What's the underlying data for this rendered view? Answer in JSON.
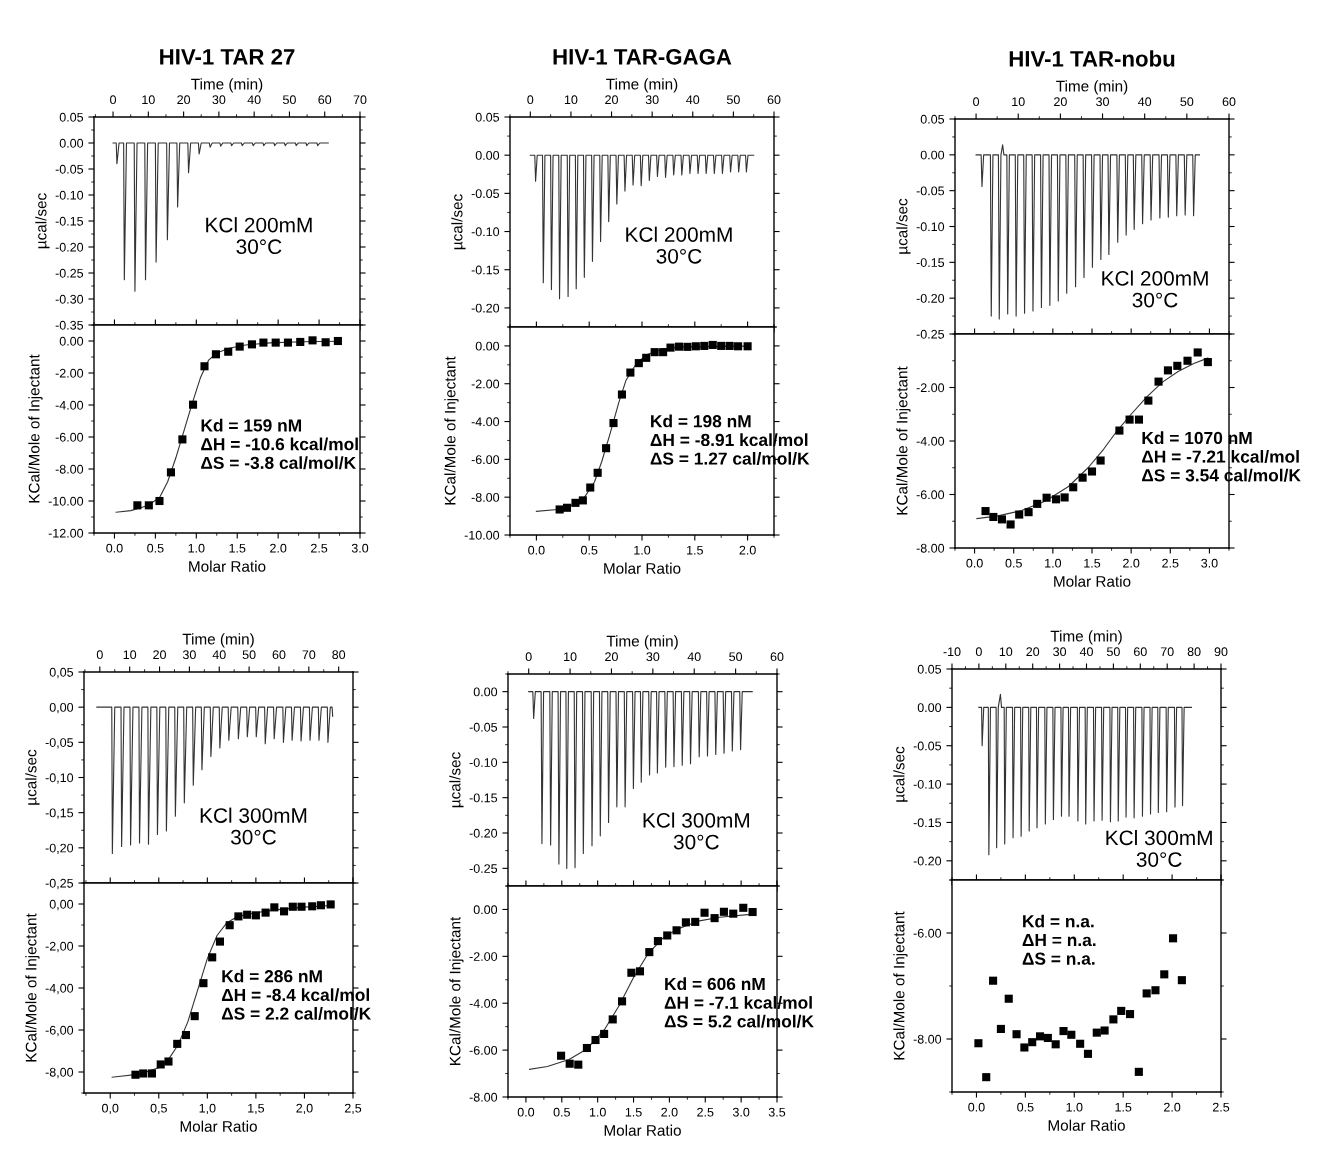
{
  "chart_data": [
    {
      "type": "line",
      "title": "HIV-1 TAR 27",
      "xlabel": "Time (min)",
      "ylabel": "µcal/sec",
      "xlim": [
        -5.4,
        70
      ],
      "xticks": [
        0,
        10,
        20,
        30,
        40,
        50,
        60,
        70
      ],
      "ylim": [
        -0.35,
        0.05
      ],
      "yticks": [
        {
          "value": 0.05,
          "label": "0.05"
        },
        {
          "value": 0,
          "label": "0.00"
        },
        {
          "value": -0.05,
          "label": "-0.05"
        },
        {
          "value": -0.1,
          "label": "-0.10"
        },
        {
          "value": -0.15,
          "label": "-0.15"
        },
        {
          "value": -0.2,
          "label": "-0.20"
        },
        {
          "value": -0.25,
          "label": "-0.25"
        },
        {
          "value": -0.3,
          "label": "-0.30"
        },
        {
          "value": -0.35,
          "label": "-0.35"
        }
      ],
      "annotations": [
        "KCl 200mM",
        "30°C"
      ],
      "series": [
        {
          "color": "#333333",
          "x": [
            0,
            0.9,
            1.1,
            1.7,
            3.0,
            3.2,
            3.8,
            6.0,
            6.2,
            6.8,
            9.0,
            9.2,
            9.8,
            12.0,
            12.2,
            12.8,
            15.2,
            15.4,
            16.0,
            18.1,
            18.3,
            18.9,
            21.2,
            21.4,
            22.0,
            24.2,
            24.4,
            25.0,
            27.3,
            27.5,
            28.1,
            30.3,
            30.5,
            31.1,
            33.4,
            33.6,
            34.2,
            36.4,
            36.6,
            37.2,
            39.5,
            39.7,
            40.3,
            42.5,
            42.7,
            43.3,
            45.6,
            45.8,
            46.4,
            48.6,
            48.8,
            49.4,
            51.7,
            51.9,
            52.5,
            54.7,
            54.9,
            55.5,
            57.8,
            58.0,
            58.6,
            61
          ],
          "values": [
            0,
            0,
            -0.04,
            0,
            0,
            -0.263,
            0,
            0,
            -0.285,
            0,
            0,
            -0.263,
            0,
            0,
            -0.229,
            0,
            0,
            -0.186,
            0,
            0,
            -0.123,
            0,
            0,
            -0.057,
            0,
            0,
            -0.021,
            0,
            0,
            -0.008,
            0,
            0,
            -0.006,
            0,
            0,
            -0.005,
            0,
            0,
            -0.005,
            0,
            0,
            -0.005,
            0,
            0,
            -0.005,
            0,
            0,
            -0.005,
            0,
            0,
            -0.005,
            0,
            0,
            -0.005,
            0,
            0,
            -0.005,
            0,
            0,
            -0.005,
            0,
            0
          ]
        }
      ]
    },
    {
      "type": "scatter",
      "xlabel": "Molar Ratio",
      "ylabel": "KCal/Mole of Injectant",
      "xlim": [
        -0.25,
        3.0
      ],
      "xticks": [
        {
          "value": 0,
          "label": "0.0"
        },
        0.5,
        {
          "value": 1,
          "label": "1.0"
        },
        1.5,
        {
          "value": 2,
          "label": "2.0"
        },
        2.5,
        {
          "value": 3,
          "label": "3.0"
        }
      ],
      "ylim": [
        -12,
        1.0
      ],
      "yticks": [
        {
          "value": 0,
          "label": "0.00"
        },
        {
          "value": -2,
          "label": "-2.00"
        },
        {
          "value": -4,
          "label": "-4.00"
        },
        {
          "value": -6,
          "label": "-6.00"
        },
        {
          "value": -8,
          "label": "-8.00"
        },
        {
          "value": -10,
          "label": "-10.00"
        },
        {
          "value": -12,
          "label": "-12.00"
        }
      ],
      "annotations": [
        "Kd = 159 nM",
        "ΔH = -10.6 kcal/mol",
        "ΔS = -3.8 cal/mol/K"
      ],
      "series": [
        {
          "color": "#000000",
          "marker": "square",
          "x": [
            0.28,
            0.42,
            0.55,
            0.69,
            0.83,
            0.96,
            1.1,
            1.24,
            1.39,
            1.53,
            1.68,
            1.82,
            1.97,
            2.12,
            2.27,
            2.42,
            2.58,
            2.73
          ],
          "values": [
            -10.27,
            -10.27,
            -10.0,
            -8.21,
            -6.15,
            -3.98,
            -1.58,
            -0.83,
            -0.67,
            -0.35,
            -0.21,
            -0.1,
            -0.1,
            -0.1,
            -0.06,
            0.04,
            -0.08,
            0.0
          ]
        },
        {
          "type": "line",
          "color": "#333333",
          "x": [
            0.02,
            0.2,
            0.4,
            0.55,
            0.65,
            0.75,
            0.85,
            0.95,
            1.05,
            1.15,
            1.25,
            1.4,
            1.6,
            1.9,
            2.3,
            2.73
          ],
          "values": [
            -10.7,
            -10.6,
            -10.3,
            -9.8,
            -8.8,
            -7.3,
            -5.6,
            -3.9,
            -2.3,
            -1.2,
            -0.75,
            -0.45,
            -0.25,
            -0.12,
            -0.05,
            -0.02
          ]
        }
      ]
    },
    {
      "type": "line",
      "title": "HIV-1 TAR-GAGA",
      "xlabel": "Time (min)",
      "ylabel": "µcal/sec",
      "xlim": [
        -5,
        60
      ],
      "xticks": [
        0,
        10,
        20,
        30,
        40,
        50,
        60
      ],
      "ylim": [
        -0.225,
        0.05
      ],
      "yticks": [
        {
          "value": 0.05,
          "label": "0.05"
        },
        {
          "value": 0,
          "label": "0.00"
        },
        {
          "value": -0.05,
          "label": "-0.05"
        },
        {
          "value": -0.1,
          "label": "-0.10"
        },
        {
          "value": -0.15,
          "label": "-0.15"
        },
        {
          "value": -0.2,
          "label": "-0.20"
        }
      ],
      "annotations": [
        "KCl 200mM",
        "30°C"
      ],
      "series": [
        {
          "color": "#333333",
          "x": [
            0,
            1.1,
            1.3,
            1.7,
            3.0,
            3.2,
            3.6,
            5.0,
            5.2,
            5.6,
            7.0,
            7.2,
            7.6,
            9.1,
            9.3,
            9.7,
            11.1,
            11.3,
            11.7,
            13.1,
            13.3,
            13.7,
            15.1,
            15.3,
            15.7,
            17.1,
            17.3,
            17.7,
            19.1,
            19.3,
            19.7,
            21.1,
            21.3,
            21.7,
            23.1,
            23.3,
            23.7,
            25.1,
            25.3,
            25.7,
            27.1,
            27.3,
            27.7,
            29.1,
            29.3,
            29.7,
            31.1,
            31.3,
            31.7,
            33.1,
            33.3,
            33.7,
            35.1,
            35.3,
            35.7,
            37.1,
            37.3,
            37.7,
            39.1,
            39.3,
            39.7,
            41.1,
            41.3,
            41.7,
            43.1,
            43.3,
            43.7,
            45.1,
            45.3,
            45.7,
            47.1,
            47.3,
            47.7,
            49.1,
            49.3,
            49.7,
            51.1,
            51.3,
            51.7,
            53.0,
            53.2,
            53.6,
            55
          ],
          "values": [
            0,
            0,
            -0.034,
            0,
            0,
            -0.167,
            0,
            0,
            -0.176,
            0,
            0,
            -0.188,
            0,
            0,
            -0.185,
            0,
            0,
            -0.175,
            0,
            0,
            -0.16,
            0,
            0,
            -0.139,
            0,
            0,
            -0.113,
            0,
            0,
            -0.087,
            0,
            0,
            -0.064,
            0,
            0,
            -0.047,
            0,
            0,
            -0.039,
            0,
            0,
            -0.04,
            0,
            0,
            -0.033,
            0,
            0,
            -0.028,
            0,
            0,
            -0.029,
            0,
            0,
            -0.026,
            0,
            0,
            -0.026,
            0,
            0,
            -0.024,
            0,
            0,
            -0.024,
            0,
            0,
            -0.024,
            0,
            0,
            -0.024,
            0,
            0,
            -0.024,
            0,
            0,
            -0.022,
            0,
            0,
            -0.022,
            0,
            0,
            -0.022,
            0,
            0
          ]
        }
      ]
    },
    {
      "type": "scatter",
      "xlabel": "Molar Ratio",
      "ylabel": "KCal/Mole of Injectant",
      "xlim": [
        -0.25,
        2.25
      ],
      "xticks": [
        {
          "value": 0,
          "label": "0.0"
        },
        0.5,
        {
          "value": 1,
          "label": "1.0"
        },
        1.5,
        {
          "value": 2,
          "label": "2.0"
        }
      ],
      "ylim": [
        -10,
        1.0
      ],
      "yticks": [
        {
          "value": 0,
          "label": "0.00"
        },
        {
          "value": -2,
          "label": "-2.00"
        },
        {
          "value": -4,
          "label": "-4.00"
        },
        {
          "value": -6,
          "label": "-6.00"
        },
        {
          "value": -8,
          "label": "-8.00"
        },
        {
          "value": -10,
          "label": "-10.00"
        }
      ],
      "annotations": [
        "Kd = 198 nM",
        "ΔH = -8.91 kcal/mol",
        "ΔS = 1.27 cal/mol/K"
      ],
      "series": [
        {
          "color": "#000000",
          "marker": "square",
          "x": [
            0.22,
            0.29,
            0.37,
            0.44,
            0.51,
            0.58,
            0.66,
            0.73,
            0.81,
            0.89,
            0.97,
            1.04,
            1.12,
            1.2,
            1.27,
            1.35,
            1.43,
            1.51,
            1.59,
            1.67,
            1.75,
            1.83,
            1.91,
            2.0
          ],
          "values": [
            -8.65,
            -8.56,
            -8.3,
            -8.17,
            -7.49,
            -6.71,
            -5.41,
            -4.08,
            -2.57,
            -1.41,
            -0.91,
            -0.63,
            -0.33,
            -0.33,
            -0.09,
            -0.04,
            -0.05,
            -0.02,
            0.0,
            0.05,
            0.0,
            0.0,
            -0.02,
            -0.02
          ]
        },
        {
          "type": "line",
          "color": "#333333",
          "x": [
            0.0,
            0.2,
            0.35,
            0.45,
            0.55,
            0.62,
            0.7,
            0.78,
            0.85,
            0.95,
            1.05,
            1.2,
            1.4,
            2.0
          ],
          "values": [
            -8.75,
            -8.65,
            -8.4,
            -8.05,
            -7.2,
            -6.1,
            -4.6,
            -3.0,
            -1.8,
            -0.9,
            -0.45,
            -0.15,
            -0.05,
            -0.01
          ]
        }
      ]
    },
    {
      "type": "line",
      "title": "HIV-1 TAR-nobu",
      "xlabel": "Time (min)",
      "ylabel": "µcal/sec",
      "xlim": [
        -5,
        60
      ],
      "xticks": [
        0,
        10,
        20,
        30,
        40,
        50,
        60
      ],
      "ylim": [
        -0.25,
        0.05
      ],
      "yticks": [
        {
          "value": 0.05,
          "label": "0.05"
        },
        {
          "value": 0,
          "label": "0.00"
        },
        {
          "value": -0.05,
          "label": "-0.05"
        },
        {
          "value": -0.1,
          "label": "-0.10"
        },
        {
          "value": -0.15,
          "label": "-0.15"
        },
        {
          "value": -0.2,
          "label": "-0.20"
        },
        {
          "value": -0.25,
          "label": "-0.25"
        }
      ],
      "annotations": [
        "KCl 200mM",
        "30°C"
      ],
      "series": [
        {
          "color": "#333333",
          "x": [
            0,
            1.2,
            1.4,
            1.8,
            3.4,
            3.6,
            4.0,
            5.3,
            5.5,
            5.9,
            6.3,
            6.6,
            7.3,
            7.5,
            7.9,
            9.3,
            9.5,
            9.9,
            11.3,
            11.5,
            11.9,
            13.3,
            13.5,
            13.9,
            15.3,
            15.5,
            15.9,
            17.3,
            17.5,
            17.9,
            19.3,
            19.5,
            19.9,
            21.3,
            21.5,
            21.9,
            23.4,
            23.6,
            24.0,
            25.4,
            25.6,
            26.0,
            27.4,
            27.6,
            28.0,
            29.4,
            29.6,
            30.0,
            31.3,
            31.5,
            31.9,
            33.4,
            33.6,
            34.0,
            35.4,
            35.6,
            36.0,
            37.3,
            37.5,
            37.9,
            39.3,
            39.5,
            39.9,
            41.3,
            41.5,
            41.9,
            43.4,
            43.6,
            44.0,
            45.4,
            45.6,
            46.0,
            47.4,
            47.6,
            48.0,
            49.4,
            49.6,
            50.0,
            51.4,
            51.6,
            52.0,
            53
          ],
          "values": [
            0,
            0,
            -0.044,
            0,
            0,
            -0.225,
            0,
            0,
            -0.229,
            0,
            0.014,
            0,
            0,
            -0.222,
            0,
            0,
            -0.225,
            0,
            0,
            -0.221,
            0,
            0,
            -0.218,
            0,
            0,
            -0.213,
            0,
            0,
            -0.21,
            0,
            0,
            -0.204,
            0,
            0,
            -0.193,
            0,
            0,
            -0.184,
            0,
            0,
            -0.171,
            0,
            0,
            -0.157,
            0,
            0,
            -0.146,
            0,
            0,
            -0.139,
            0,
            0,
            -0.122,
            0,
            0,
            -0.112,
            0,
            0,
            -0.104,
            0,
            0,
            -0.096,
            0,
            0,
            -0.091,
            0,
            0,
            -0.088,
            0,
            0,
            -0.087,
            0,
            0,
            -0.085,
            0,
            0,
            -0.084,
            0,
            0,
            -0.085,
            0,
            0
          ]
        }
      ]
    },
    {
      "type": "scatter",
      "xlabel": "Molar Ratio",
      "ylabel": "KCal/Mole of Injectant",
      "xlim": [
        -0.25,
        3.25
      ],
      "xticks": [
        {
          "value": 0,
          "label": "0.0"
        },
        0.5,
        {
          "value": 1,
          "label": "1.0"
        },
        1.5,
        {
          "value": 2,
          "label": "2.0"
        },
        2.5,
        {
          "value": 3,
          "label": "3.0"
        }
      ],
      "ylim": [
        -8,
        0
      ],
      "yticks": [
        {
          "value": -2,
          "label": "-2.00"
        },
        {
          "value": -4,
          "label": "-4.00"
        },
        {
          "value": -6,
          "label": "-6.00"
        },
        {
          "value": -8,
          "label": "-8.00"
        }
      ],
      "annotations": [
        "Kd = 1070 nM",
        "ΔH = -7.21 kcal/mol",
        "ΔS = 3.54 cal/mol/K"
      ],
      "series": [
        {
          "color": "#000000",
          "marker": "square",
          "x": [
            0.14,
            0.24,
            0.35,
            0.46,
            0.57,
            0.69,
            0.8,
            0.92,
            1.04,
            1.15,
            1.26,
            1.38,
            1.5,
            1.61,
            1.85,
            1.98,
            2.1,
            2.22,
            2.35,
            2.47,
            2.59,
            2.72,
            2.85,
            2.98
          ],
          "values": [
            -6.62,
            -6.84,
            -6.93,
            -7.12,
            -6.75,
            -6.66,
            -6.35,
            -6.12,
            -6.18,
            -6.11,
            -5.73,
            -5.37,
            -5.14,
            -4.73,
            -3.61,
            -3.2,
            -3.2,
            -2.49,
            -1.78,
            -1.36,
            -1.19,
            -1.0,
            -0.69,
            -1.05
          ]
        },
        {
          "type": "line",
          "color": "#333333",
          "x": [
            0.03,
            0.3,
            0.6,
            0.9,
            1.2,
            1.45,
            1.65,
            1.8,
            2.0,
            2.2,
            2.4,
            2.6,
            2.8,
            2.98
          ],
          "values": [
            -6.9,
            -6.8,
            -6.6,
            -6.25,
            -5.7,
            -5.0,
            -4.3,
            -3.7,
            -3.0,
            -2.35,
            -1.8,
            -1.4,
            -1.1,
            -0.9
          ]
        }
      ]
    },
    {
      "type": "line",
      "xlabel": "Time (min)",
      "ylabel": "µcal/sec",
      "xlim": [
        -5.3,
        84.8
      ],
      "xticks": [
        0,
        10,
        20,
        30,
        40,
        50,
        60,
        70,
        80
      ],
      "ylim": [
        -0.25,
        0.05
      ],
      "yticks": [
        {
          "value": 0.05,
          "label": "0,05"
        },
        {
          "value": 0,
          "label": "0,00"
        },
        {
          "value": -0.05,
          "label": "-0,05"
        },
        {
          "value": -0.1,
          "label": "-0,10"
        },
        {
          "value": -0.15,
          "label": "-0,15"
        },
        {
          "value": -0.2,
          "label": "-0,20"
        },
        {
          "value": -0.25,
          "label": "-0,25"
        }
      ],
      "annotations": [
        "KCl 300mM",
        "30°C"
      ],
      "series": [
        {
          "color": "#333333",
          "x": [
            -1,
            4.0,
            4.2,
            5.0,
            7.1,
            7.3,
            8.1,
            10.1,
            10.3,
            11.1,
            13.1,
            13.3,
            14.1,
            16.1,
            16.3,
            17.1,
            19.1,
            19.3,
            20.1,
            22.1,
            22.3,
            23.1,
            25.1,
            25.3,
            26.1,
            28.1,
            28.3,
            29.1,
            31.1,
            31.3,
            32.1,
            34.0,
            34.2,
            35.0,
            37.0,
            37.2,
            38.0,
            40.0,
            40.2,
            41.0,
            43.0,
            43.2,
            44.0,
            46.2,
            46.4,
            47.2,
            49.2,
            49.4,
            50.2,
            52.2,
            52.4,
            53.2,
            55.2,
            55.4,
            56.2,
            58.2,
            58.4,
            59.2,
            61.3,
            61.5,
            62.3,
            64.2,
            64.4,
            65.2,
            67.2,
            67.4,
            68.2,
            70.2,
            70.4,
            71.2,
            73.2,
            73.4,
            74.2,
            76.2,
            76.4,
            77.2,
            77.8,
            78
          ],
          "values": [
            0,
            0,
            -0.208,
            0,
            0,
            -0.198,
            0,
            0,
            -0.196,
            0,
            0,
            -0.193,
            0,
            0,
            -0.195,
            0,
            0,
            -0.181,
            0,
            0,
            -0.176,
            0,
            0,
            -0.155,
            0,
            0,
            -0.136,
            0,
            0,
            -0.111,
            0,
            0,
            -0.089,
            0,
            0,
            -0.07,
            0,
            0,
            -0.058,
            0,
            0,
            -0.047,
            0,
            0,
            -0.045,
            0,
            0,
            -0.042,
            0,
            0,
            -0.042,
            0,
            0,
            -0.052,
            0,
            0,
            -0.045,
            0,
            0,
            -0.05,
            0,
            0,
            -0.047,
            0,
            0,
            -0.048,
            0,
            0,
            -0.047,
            0,
            0,
            -0.047,
            0,
            0,
            -0.05,
            0,
            0,
            -0.013
          ]
        }
      ]
    },
    {
      "type": "scatter",
      "xlabel": "Molar Ratio",
      "ylabel": "KCal/Mole of Injectant",
      "xlim": [
        -0.27,
        2.5
      ],
      "xticks": [
        {
          "value": 0,
          "label": "0,0"
        },
        {
          "value": 0.5,
          "label": "0,5"
        },
        {
          "value": 1,
          "label": "1,0"
        },
        {
          "value": 1.5,
          "label": "1,5"
        },
        {
          "value": 2,
          "label": "2,0"
        },
        {
          "value": 2.5,
          "label": "2,5"
        }
      ],
      "ylim": [
        -9,
        1.0
      ],
      "yticks": [
        {
          "value": 0,
          "label": "0,00"
        },
        {
          "value": -2,
          "label": "-2,00"
        },
        {
          "value": -4,
          "label": "-4,00"
        },
        {
          "value": -6,
          "label": "-6,00"
        },
        {
          "value": -8,
          "label": "-8,00"
        }
      ],
      "annotations": [
        "Kd = 286 nM",
        "ΔH = -8.4 kcal/mol",
        "ΔS = 2.2 cal/mol/K"
      ],
      "series": [
        {
          "color": "#000000",
          "marker": "square",
          "x": [
            0.26,
            0.34,
            0.43,
            0.52,
            0.6,
            0.69,
            0.78,
            0.87,
            0.96,
            1.05,
            1.13,
            1.23,
            1.32,
            1.41,
            1.5,
            1.6,
            1.69,
            1.79,
            1.88,
            1.97,
            2.08,
            2.17,
            2.27
          ],
          "values": [
            -8.13,
            -8.07,
            -8.07,
            -7.64,
            -7.5,
            -6.66,
            -6.24,
            -5.34,
            -3.77,
            -2.54,
            -1.79,
            -1.01,
            -0.59,
            -0.51,
            -0.54,
            -0.41,
            -0.16,
            -0.35,
            -0.13,
            -0.13,
            -0.11,
            -0.06,
            -0.02
          ]
        },
        {
          "type": "line",
          "color": "#333333",
          "x": [
            0.02,
            0.3,
            0.5,
            0.6,
            0.7,
            0.8,
            0.9,
            1.0,
            1.1,
            1.2,
            1.3,
            1.45,
            1.7,
            2.0,
            2.27
          ],
          "values": [
            -8.25,
            -8.1,
            -7.8,
            -7.4,
            -6.7,
            -5.6,
            -4.1,
            -2.6,
            -1.5,
            -0.9,
            -0.62,
            -0.45,
            -0.28,
            -0.15,
            -0.07
          ]
        }
      ]
    },
    {
      "type": "line",
      "xlabel": "Time (min)",
      "ylabel": "µcal/sec",
      "xlim": [
        -5,
        60
      ],
      "xticks": [
        0,
        10,
        20,
        30,
        40,
        50,
        60
      ],
      "ylim": [
        -0.275,
        0.025
      ],
      "yticks": [
        {
          "value": 0,
          "label": "0.00"
        },
        {
          "value": -0.05,
          "label": "-0.05"
        },
        {
          "value": -0.1,
          "label": "-0.10"
        },
        {
          "value": -0.15,
          "label": "-0.15"
        },
        {
          "value": -0.2,
          "label": "-0.20"
        },
        {
          "value": -0.25,
          "label": "-0.25"
        }
      ],
      "annotations": [
        "KCl 300mM",
        "30°C"
      ],
      "series": [
        {
          "color": "#333333",
          "x": [
            0,
            1.0,
            1.2,
            1.6,
            3.0,
            3.2,
            3.6,
            5.1,
            5.3,
            5.7,
            7.1,
            7.3,
            7.7,
            9.0,
            9.2,
            9.6,
            11.0,
            11.2,
            11.6,
            13.0,
            13.2,
            13.6,
            15.1,
            15.3,
            15.7,
            17.1,
            17.3,
            17.7,
            19.1,
            19.3,
            19.7,
            21.1,
            21.3,
            21.7,
            23.1,
            23.3,
            23.7,
            25.1,
            25.3,
            25.7,
            27.0,
            27.2,
            27.6,
            29.0,
            29.2,
            29.6,
            30.9,
            31.1,
            31.5,
            32.9,
            33.1,
            33.5,
            34.9,
            35.1,
            35.5,
            36.9,
            37.1,
            37.5,
            38.9,
            39.1,
            39.5,
            41.0,
            41.2,
            41.6,
            43.0,
            43.2,
            43.6,
            45.0,
            45.2,
            45.6,
            47.0,
            47.2,
            47.6,
            49.0,
            49.2,
            49.6,
            51.0,
            51.2,
            51.6,
            54
          ],
          "values": [
            0,
            0,
            -0.038,
            0,
            0,
            -0.215,
            0,
            0,
            -0.217,
            0,
            0,
            -0.244,
            0,
            0,
            -0.25,
            0,
            0,
            -0.249,
            0,
            0,
            -0.229,
            0,
            0,
            -0.218,
            0,
            0,
            -0.204,
            0,
            0,
            -0.185,
            0,
            0,
            -0.163,
            0,
            0,
            -0.163,
            0,
            0,
            -0.137,
            0,
            0,
            -0.128,
            0,
            0,
            -0.118,
            0,
            0,
            -0.115,
            0,
            0,
            -0.107,
            0,
            0,
            -0.106,
            0,
            0,
            -0.104,
            0,
            0,
            -0.102,
            0,
            0,
            -0.092,
            0,
            0,
            -0.091,
            0,
            0,
            -0.089,
            0,
            0,
            -0.087,
            0,
            0,
            -0.084,
            0,
            0,
            -0.082,
            0,
            0
          ]
        }
      ]
    },
    {
      "type": "scatter",
      "xlabel": "Molar Ratio",
      "ylabel": "KCal/Mole of Injectant",
      "xlim": [
        -0.25,
        3.5
      ],
      "xticks": [
        {
          "value": 0,
          "label": "0.0"
        },
        0.5,
        {
          "value": 1,
          "label": "1.0"
        },
        1.5,
        {
          "value": 2,
          "label": "2.0"
        },
        2.5,
        {
          "value": 3,
          "label": "3.0"
        },
        3.5
      ],
      "ylim": [
        -8,
        1.0
      ],
      "yticks": [
        {
          "value": 0,
          "label": "0.00"
        },
        {
          "value": -2,
          "label": "-2.00"
        },
        {
          "value": -4,
          "label": "-4.00"
        },
        {
          "value": -6,
          "label": "-6.00"
        },
        {
          "value": -8,
          "label": "-8.00"
        }
      ],
      "annotations": [
        "Kd = 606 nM",
        "ΔH = -7.1 kcal/mol",
        "ΔS = 5.2 cal/mol/K"
      ],
      "series": [
        {
          "color": "#000000",
          "marker": "square",
          "x": [
            0.49,
            0.61,
            0.73,
            0.85,
            0.97,
            1.09,
            1.21,
            1.34,
            1.47,
            1.59,
            1.72,
            1.84,
            1.97,
            2.1,
            2.23,
            2.36,
            2.49,
            2.63,
            2.76,
            2.89,
            3.03,
            3.16
          ],
          "values": [
            -6.24,
            -6.58,
            -6.62,
            -5.91,
            -5.57,
            -5.31,
            -4.69,
            -3.92,
            -2.7,
            -2.64,
            -1.82,
            -1.35,
            -1.11,
            -0.89,
            -0.55,
            -0.53,
            -0.14,
            -0.37,
            -0.1,
            -0.18,
            0.07,
            -0.11
          ]
        },
        {
          "type": "line",
          "color": "#333333",
          "x": [
            0.05,
            0.3,
            0.6,
            0.85,
            1.1,
            1.3,
            1.5,
            1.7,
            1.9,
            2.1,
            2.4,
            2.7,
            3.16
          ],
          "values": [
            -6.82,
            -6.7,
            -6.4,
            -5.95,
            -5.1,
            -4.1,
            -2.9,
            -1.9,
            -1.25,
            -0.85,
            -0.5,
            -0.33,
            -0.2
          ]
        }
      ]
    },
    {
      "type": "line",
      "xlabel": "Time (min)",
      "ylabel": "µcal/sec",
      "xlim": [
        -10,
        90
      ],
      "xticks": [
        -10,
        0,
        10,
        20,
        30,
        40,
        50,
        60,
        70,
        80,
        90
      ],
      "ylim": [
        -0.225,
        0.05
      ],
      "yticks": [
        {
          "value": 0.05,
          "label": "0.05"
        },
        {
          "value": 0,
          "label": "0.00"
        },
        {
          "value": -0.05,
          "label": "-0.05"
        },
        {
          "value": -0.1,
          "label": "-0.10"
        },
        {
          "value": -0.15,
          "label": "-0.15"
        },
        {
          "value": -0.2,
          "label": "-0.20"
        }
      ],
      "annotations": [
        "KCl 300mM",
        "30°C"
      ],
      "series": [
        {
          "color": "#333333",
          "x": [
            0,
            1.0,
            1.2,
            1.8,
            3.5,
            3.7,
            4.3,
            6.4,
            6.6,
            7.2,
            8.0,
            8.4,
            9.4,
            9.6,
            10.2,
            12.5,
            12.7,
            13.3,
            15.5,
            15.7,
            16.3,
            18.5,
            18.7,
            19.3,
            21.4,
            21.6,
            22.2,
            24.5,
            24.7,
            25.3,
            27.5,
            27.7,
            28.3,
            30.5,
            30.7,
            31.3,
            33.3,
            33.5,
            34.1,
            36.6,
            36.8,
            37.4,
            39.5,
            39.7,
            40.3,
            42.6,
            42.8,
            43.4,
            45.6,
            45.8,
            46.4,
            48.7,
            48.9,
            49.5,
            51.6,
            51.8,
            52.4,
            54.5,
            54.7,
            55.3,
            57.5,
            57.7,
            58.3,
            60.6,
            60.8,
            61.4,
            63.6,
            63.8,
            64.4,
            66.5,
            66.7,
            67.3,
            69.6,
            69.8,
            70.4,
            72.7,
            72.9,
            73.5,
            75.5,
            75.7,
            76.3,
            79
          ],
          "values": [
            0,
            0,
            -0.05,
            0,
            0,
            -0.192,
            0,
            0,
            -0.183,
            0,
            0.017,
            0,
            0,
            -0.178,
            0,
            0,
            -0.17,
            0,
            0,
            -0.168,
            0,
            0,
            -0.161,
            0,
            0,
            -0.157,
            0,
            0,
            -0.152,
            0,
            0,
            -0.146,
            0,
            0,
            -0.142,
            0,
            0,
            -0.142,
            0,
            0,
            -0.148,
            0,
            0,
            -0.152,
            0,
            0,
            -0.148,
            0,
            0,
            -0.147,
            0,
            0,
            -0.149,
            0,
            0,
            -0.148,
            0,
            0,
            -0.143,
            0,
            0,
            -0.144,
            0,
            0,
            -0.142,
            0,
            0,
            -0.139,
            0,
            0,
            -0.137,
            0,
            0,
            -0.136,
            0,
            0,
            -0.13,
            0,
            0,
            -0.128,
            0,
            0
          ]
        }
      ]
    },
    {
      "type": "scatter",
      "xlabel": "Molar Ratio",
      "ylabel": "KCal/Mole of Injectant",
      "xlim": [
        -0.25,
        2.5
      ],
      "xticks": [
        {
          "value": 0,
          "label": "0.0"
        },
        0.5,
        {
          "value": 1,
          "label": "1.0"
        },
        1.5,
        {
          "value": 2,
          "label": "2.0"
        },
        2.5
      ],
      "ylim": [
        -9,
        -5
      ],
      "yticks": [
        {
          "value": -6,
          "label": "-6.00"
        },
        {
          "value": -8,
          "label": "-8.00"
        }
      ],
      "annotations": [
        "Kd = n.a.",
        "ΔH = n.a.",
        "ΔS = n.a."
      ],
      "series": [
        {
          "color": "#000000",
          "marker": "square",
          "x": [
            0.02,
            0.1,
            0.17,
            0.25,
            0.33,
            0.41,
            0.49,
            0.57,
            0.65,
            0.73,
            0.81,
            0.89,
            0.97,
            1.06,
            1.14,
            1.23,
            1.31,
            1.4,
            1.48,
            1.57,
            1.66,
            1.74,
            1.83,
            1.92,
            2.01,
            2.1
          ],
          "values": [
            -8.08,
            -8.72,
            -6.9,
            -7.81,
            -7.24,
            -7.91,
            -8.16,
            -8.06,
            -7.95,
            -7.98,
            -8.1,
            -7.85,
            -7.92,
            -8.09,
            -8.28,
            -7.88,
            -7.84,
            -7.63,
            -7.47,
            -7.53,
            -8.62,
            -7.14,
            -7.08,
            -6.78,
            -6.1,
            -6.89
          ]
        }
      ]
    }
  ]
}
